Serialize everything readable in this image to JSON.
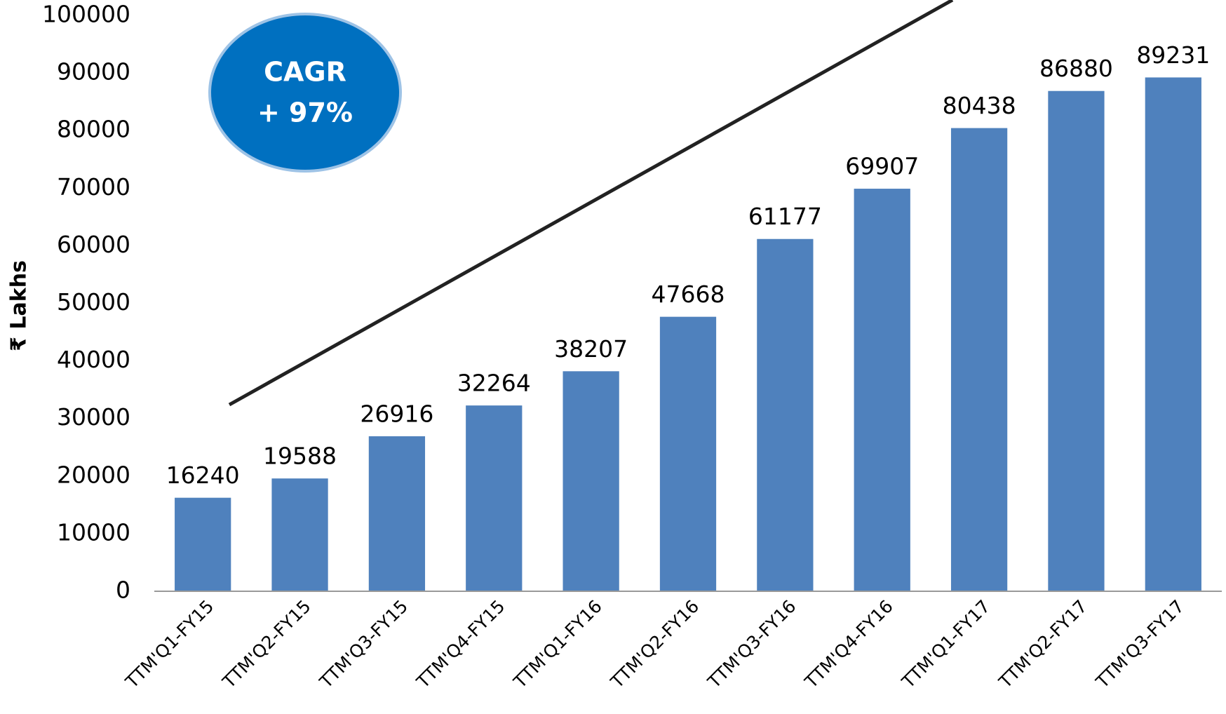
{
  "chart_data": {
    "type": "bar",
    "y_axis_label": "₹ Lakhs",
    "annotation": [
      "CAGR",
      "+ 97%"
    ],
    "categories": [
      "TTM'Q1-FY15",
      "TTM'Q2-FY15",
      "TTM'Q3-FY15",
      "TTM'Q4-FY15",
      "TTM'Q1-FY16",
      "TTM'Q2-FY16",
      "TTM'Q3-FY16",
      "TTM'Q4-FY16",
      "TTM'Q1-FY17",
      "TTM'Q2-FY17",
      "TTM'Q3-FY17"
    ],
    "values": [
      16240,
      19588,
      26916,
      32264,
      38207,
      47668,
      61177,
      69907,
      80438,
      86880,
      89231
    ],
    "color": "#4f81bd",
    "ylim": [
      0,
      100000
    ],
    "yticks": [
      0,
      10000,
      20000,
      30000,
      40000,
      50000,
      60000,
      70000,
      80000,
      90000,
      100000
    ],
    "grid": false
  }
}
